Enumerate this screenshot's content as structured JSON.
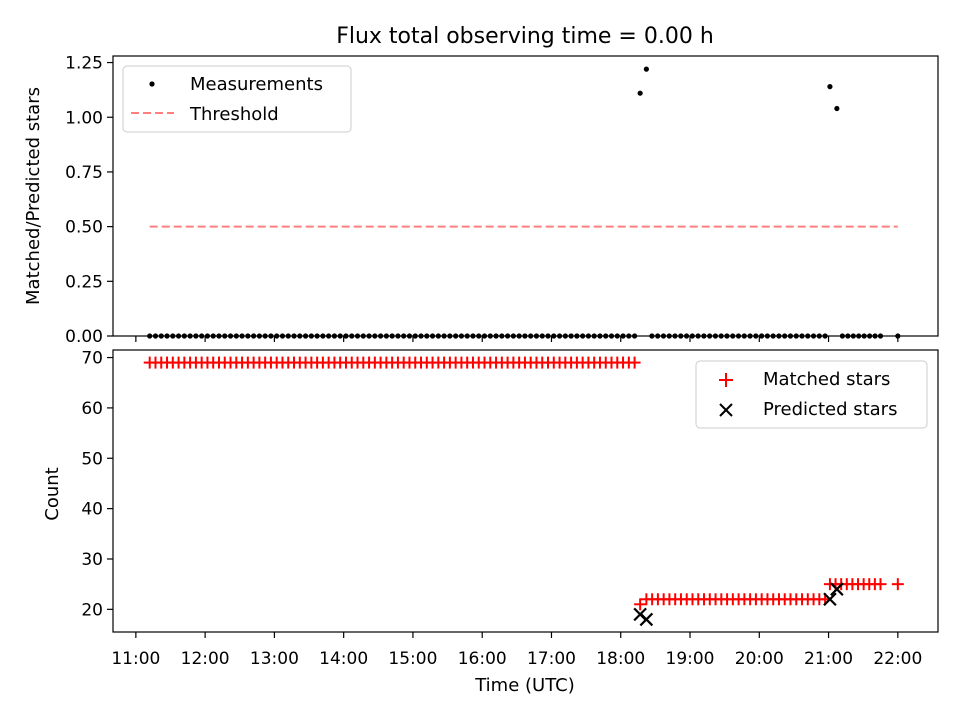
{
  "figure": {
    "title": "Flux total observing time = 0.00 h",
    "xlabel": "Time (UTC)",
    "x_ticks": [
      "11:00",
      "12:00",
      "13:00",
      "14:00",
      "15:00",
      "16:00",
      "17:00",
      "18:00",
      "19:00",
      "20:00",
      "21:00",
      "22:00"
    ]
  },
  "chart_data": [
    {
      "type": "scatter",
      "title": "Flux total observing time = 0.00 h",
      "xlabel": "",
      "ylabel": "Matched/Predicted stars",
      "x_unit": "hours UTC",
      "xlim": [
        10.67,
        22.58
      ],
      "ylim": [
        0,
        1.28
      ],
      "y_ticks": [
        "0.00",
        "0.25",
        "0.50",
        "0.75",
        "1.00",
        "1.25"
      ],
      "y_tick_values": [
        0,
        0.25,
        0.5,
        0.75,
        1.0,
        1.25
      ],
      "legend": {
        "position": "upper left",
        "entries": [
          "Measurements",
          "Threshold"
        ]
      },
      "series": [
        {
          "name": "Measurements",
          "marker": "dot",
          "color": "#000000",
          "points": [
            {
              "x_start": 11.2,
              "x_end": 18.2,
              "y": 0.0
            },
            {
              "x": 18.28,
              "y": 1.11
            },
            {
              "x": 18.37,
              "y": 1.22
            },
            {
              "x_start": 18.45,
              "x_end": 20.95,
              "y": 0.0
            },
            {
              "x": 21.02,
              "y": 1.14
            },
            {
              "x": 21.12,
              "y": 1.04
            },
            {
              "x_start": 21.2,
              "x_end": 21.75,
              "y": 0.0
            },
            {
              "x": 22.0,
              "y": 0.0
            }
          ]
        },
        {
          "name": "Threshold",
          "style": "dashed",
          "color": "#ff7f7f",
          "x": [
            11.2,
            22.0
          ],
          "y": [
            0.5,
            0.5
          ]
        }
      ]
    },
    {
      "type": "scatter",
      "xlabel": "Time (UTC)",
      "ylabel": "Count",
      "x_unit": "hours UTC",
      "xlim": [
        10.67,
        22.58
      ],
      "ylim": [
        15.5,
        71.5
      ],
      "y_ticks": [
        "20",
        "30",
        "40",
        "50",
        "60",
        "70"
      ],
      "y_tick_values": [
        20,
        30,
        40,
        50,
        60,
        70
      ],
      "legend": {
        "position": "upper right",
        "entries": [
          "Matched stars",
          "Predicted stars"
        ]
      },
      "series": [
        {
          "name": "Matched stars",
          "marker": "plus",
          "color": "#ff0000",
          "segments": [
            {
              "x_start": 11.2,
              "x_end": 18.2,
              "y": 69
            },
            {
              "x": 18.28,
              "y": 21
            },
            {
              "x_start": 18.37,
              "x_end": 20.95,
              "y": 22
            },
            {
              "x_start": 21.02,
              "x_end": 21.75,
              "y": 25
            },
            {
              "x": 22.0,
              "y": 25
            }
          ]
        },
        {
          "name": "Predicted stars",
          "marker": "x",
          "color": "#000000",
          "points": [
            {
              "x": 18.28,
              "y": 19
            },
            {
              "x": 18.37,
              "y": 18
            },
            {
              "x": 21.02,
              "y": 22
            },
            {
              "x": 21.12,
              "y": 24
            }
          ]
        }
      ]
    }
  ]
}
